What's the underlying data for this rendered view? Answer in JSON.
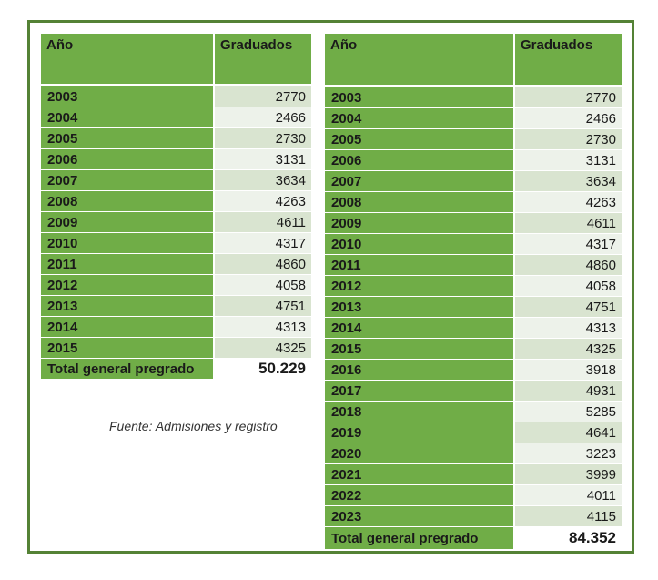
{
  "table_left": {
    "headers": [
      "Año",
      "Graduados"
    ],
    "rows": [
      [
        "2003",
        "2770"
      ],
      [
        "2004",
        "2466"
      ],
      [
        "2005",
        "2730"
      ],
      [
        "2006",
        "3131"
      ],
      [
        "2007",
        "3634"
      ],
      [
        "2008",
        "4263"
      ],
      [
        "2009",
        "4611"
      ],
      [
        "2010",
        "4317"
      ],
      [
        "2011",
        "4860"
      ],
      [
        "2012",
        "4058"
      ],
      [
        "2013",
        "4751"
      ],
      [
        "2014",
        "4313"
      ],
      [
        "2015",
        "4325"
      ]
    ],
    "total_label": "Total general pregrado",
    "total_value": "50.229"
  },
  "table_right": {
    "headers": [
      "Año",
      "Graduados"
    ],
    "rows": [
      [
        "2003",
        "2770"
      ],
      [
        "2004",
        "2466"
      ],
      [
        "2005",
        "2730"
      ],
      [
        "2006",
        "3131"
      ],
      [
        "2007",
        "3634"
      ],
      [
        "2008",
        "4263"
      ],
      [
        "2009",
        "4611"
      ],
      [
        "2010",
        "4317"
      ],
      [
        "2011",
        "4860"
      ],
      [
        "2012",
        "4058"
      ],
      [
        "2013",
        "4751"
      ],
      [
        "2014",
        "4313"
      ],
      [
        "2015",
        "4325"
      ],
      [
        "2016",
        "3918"
      ],
      [
        "2017",
        "4931"
      ],
      [
        "2018",
        "5285"
      ],
      [
        "2019",
        "4641"
      ],
      [
        "2020",
        "3223"
      ],
      [
        "2021",
        "3999"
      ],
      [
        "2022",
        "4011"
      ],
      [
        "2023",
        "4115"
      ]
    ],
    "total_label": "Total general pregrado",
    "total_value": "84.352"
  },
  "source": "Fuente: Admisiones y registro",
  "colors": {
    "header_green": "#70ad47",
    "frame_green": "#548235",
    "row_light": "#edf2ea",
    "row_dark": "#d9e4d0"
  }
}
